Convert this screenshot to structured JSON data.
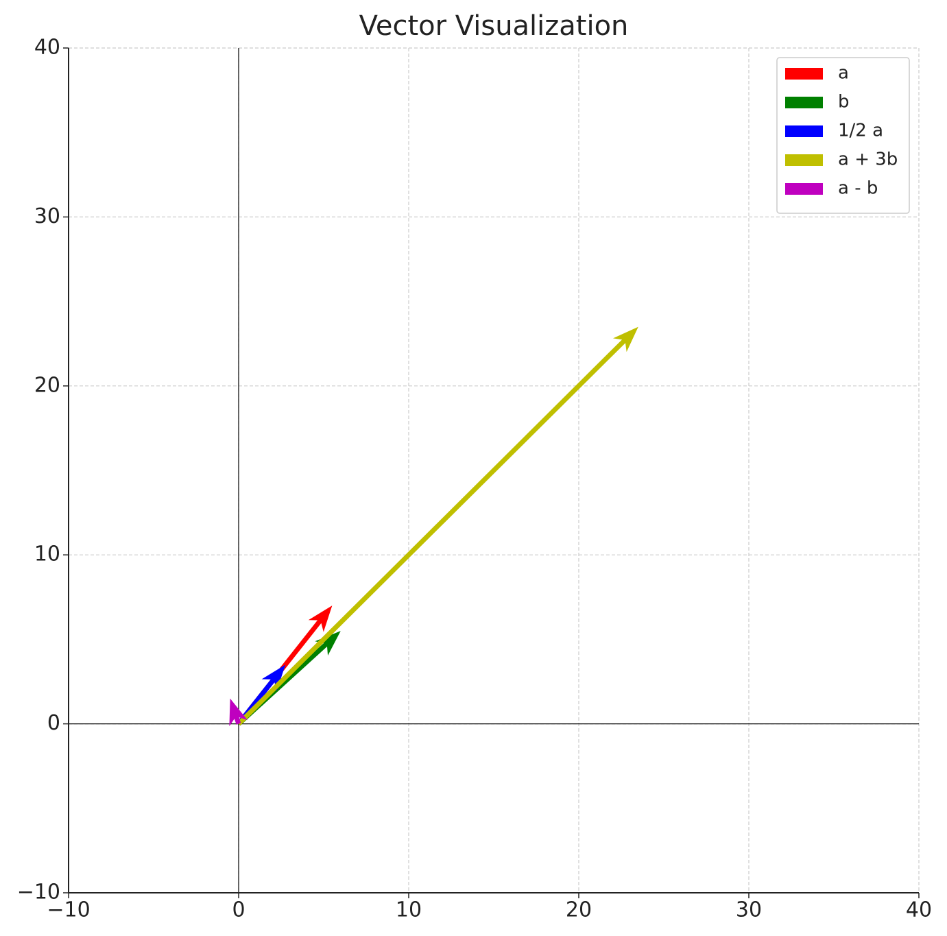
{
  "chart_data": {
    "type": "quiver",
    "title": "Vector Visualization",
    "series": [
      {
        "name": "a",
        "color": "#ff0000",
        "u": 5.5,
        "v": 7
      },
      {
        "name": "b",
        "color": "#008000",
        "u": 6,
        "v": 5.5
      },
      {
        "name": "1/2 a",
        "color": "#0000ff",
        "u": 2.75,
        "v": 3.5
      },
      {
        "name": "a + 3b",
        "color": "#bfbf00",
        "u": 23.5,
        "v": 23.5
      },
      {
        "name": "a - b",
        "color": "#bf00bf",
        "u": -0.5,
        "v": 1.5
      }
    ],
    "xlim": [
      -10,
      40
    ],
    "ylim": [
      -10,
      40
    ],
    "xticks": [
      {
        "value": -10,
        "label": "−10"
      },
      0,
      10,
      20,
      30,
      40
    ],
    "yticks": [
      {
        "value": -10,
        "label": "−10"
      },
      0,
      10,
      20,
      30,
      40
    ],
    "grid": true,
    "legend": "upper right"
  }
}
